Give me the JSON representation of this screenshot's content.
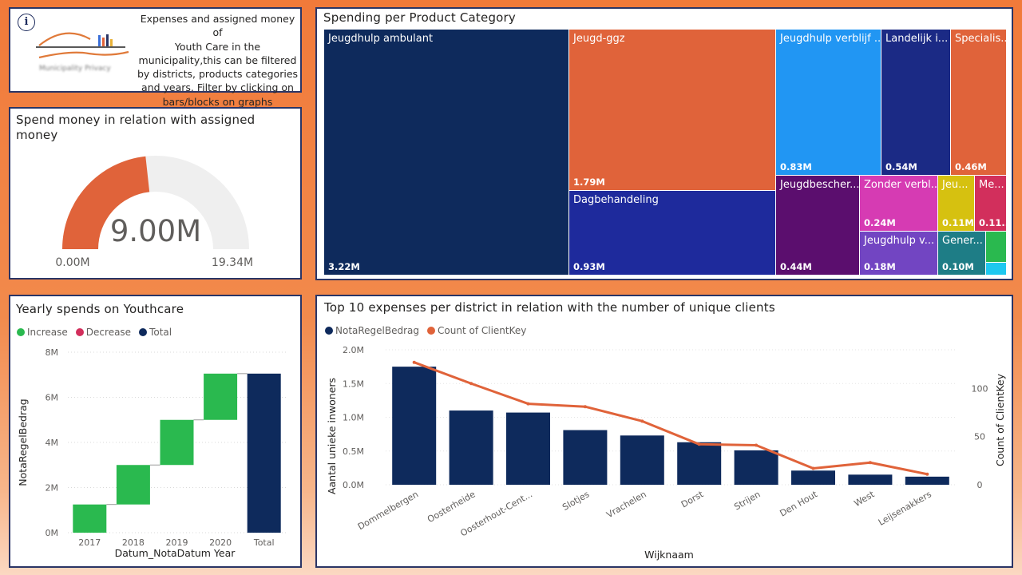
{
  "info": {
    "text": "Expenses and assigned money of Youth Care in the municipality,this can be filtered by districts, products categories and years. Filter by clicking on bars/blocks on graphs",
    "text_lines": [
      "Expenses and assigned money of",
      "Youth Care in the",
      "municipality,this can be filtered",
      "by districts, products categories",
      "and years. Filter by clicking on",
      "bars/blocks on graphs"
    ],
    "logo_caption": "Municipality Privacy"
  },
  "gauge": {
    "title_line1": "Spend money in relation with assigned",
    "title_line2": "money",
    "value_label": "9.00M",
    "min_label": "0.00M",
    "max_label": "19.34M",
    "value": 9.0,
    "min": 0,
    "max": 19.34,
    "fill_color": "#e0633a",
    "track_color": "#efefef"
  },
  "treemap": {
    "title": "Spending per Product Category"
  },
  "waterfall": {
    "title": "Yearly spends on Youthcare",
    "legend": [
      "Increase",
      "Decrease",
      "Total"
    ],
    "ylabel": "NotaRegelBedrag",
    "xlabel": "Datum_NotaDatum Year",
    "yticks": [
      "0M",
      "2M",
      "4M",
      "6M",
      "8M"
    ]
  },
  "combo": {
    "title": "Top 10 expenses per district in relation with the number of unique clients",
    "legend": [
      "NotaRegelBedrag",
      "Count of ClientKey"
    ],
    "ylabel": "Aantal unieke inwoners",
    "y2label": "Count of ClientKey",
    "xlabel": "Wijknaam",
    "yticks": [
      "0.0M",
      "0.5M",
      "1.0M",
      "1.5M",
      "2.0M"
    ],
    "y2ticks": [
      "0",
      "50",
      "100"
    ]
  },
  "chart_data": [
    {
      "type": "treemap",
      "title": "Spending per Product Category",
      "items": [
        {
          "name": "Jeugdhulp ambulant",
          "label": "Jeugdhulp ambulant",
          "value_label": "3.22M",
          "value": 3.22,
          "color": "#0e2a5c"
        },
        {
          "name": "Jeugd-ggz",
          "label": "Jeugd-ggz",
          "value_label": "1.79M",
          "value": 1.79,
          "color": "#e0633a"
        },
        {
          "name": "Dagbehandeling",
          "label": "Dagbehandeling",
          "value_label": "0.93M",
          "value": 0.93,
          "color": "#1e2a9c"
        },
        {
          "name": "Jeugdhulp verblijf",
          "label": "Jeugdhulp verblijf ...",
          "value_label": "0.83M",
          "value": 0.83,
          "color": "#2196f3"
        },
        {
          "name": "Landelijk",
          "label": "Landelijk i...",
          "value_label": "0.54M",
          "value": 0.54,
          "color": "#1b2a85"
        },
        {
          "name": "Specialistisch",
          "label": "Specialis...",
          "value_label": "0.46M",
          "value": 0.46,
          "color": "#e0633a"
        },
        {
          "name": "Jeugdbescherming",
          "label": "Jeugdbescher...",
          "value_label": "0.44M",
          "value": 0.44,
          "color": "#5b0e6e"
        },
        {
          "name": "Zonder verblijf",
          "label": "Zonder verbl...",
          "value_label": "0.24M",
          "value": 0.24,
          "color": "#d63bb3"
        },
        {
          "name": "Jeugdhulp v",
          "label": "Jeugdhulp v...",
          "value_label": "0.18M",
          "value": 0.18,
          "color": "#7245c2"
        },
        {
          "name": "Jeu",
          "label": "Jeu...",
          "value_label": "0.11M",
          "value": 0.11,
          "color": "#d6c110"
        },
        {
          "name": "Me",
          "label": "Me...",
          "value_label": "0.11...",
          "value": 0.11,
          "color": "#d22f5c"
        },
        {
          "name": "Gener",
          "label": "Gener...",
          "value_label": "0.10M",
          "value": 0.1,
          "color": "#1e7d86"
        },
        {
          "name": "small-green",
          "label": "",
          "value_label": "",
          "value": 0.04,
          "color": "#2ab94f"
        },
        {
          "name": "small-cyan",
          "label": "",
          "value_label": "",
          "value": 0.02,
          "color": "#1ec8ef"
        }
      ]
    },
    {
      "type": "waterfall",
      "title": "Yearly spends on Youthcare",
      "categories": [
        "2017",
        "2018",
        "2019",
        "2020",
        "Total"
      ],
      "values": [
        1.25,
        1.75,
        2.0,
        2.05,
        7.05
      ],
      "kinds": [
        "increase",
        "increase",
        "increase",
        "increase",
        "total"
      ],
      "ylim": [
        0,
        8
      ],
      "colors": {
        "increase": "#2ab94f",
        "decrease": "#d22f5c",
        "total": "#0e2a5c"
      }
    },
    {
      "type": "bar+line",
      "title": "Top 10 expenses per district in relation with the number of unique clients",
      "categories": [
        "Dommelbergen",
        "Oosterheide",
        "Oosterhout-Cent...",
        "Slotjes",
        "Vrachelen",
        "Dorst",
        "Strijen",
        "Den Hout",
        "West",
        "Leijsenakkers"
      ],
      "series": [
        {
          "name": "NotaRegelBedrag",
          "type": "bar",
          "axis": "left",
          "color": "#0e2a5c",
          "values": [
            1.75,
            1.1,
            1.07,
            0.81,
            0.73,
            0.63,
            0.51,
            0.21,
            0.15,
            0.12
          ]
        },
        {
          "name": "Count of ClientKey",
          "type": "line",
          "axis": "right",
          "color": "#e0633a",
          "values": [
            127,
            105,
            84,
            81,
            66,
            42,
            41,
            17,
            23,
            11
          ]
        }
      ],
      "ylim": [
        0,
        2.0
      ],
      "y2lim": [
        0,
        140
      ]
    }
  ]
}
